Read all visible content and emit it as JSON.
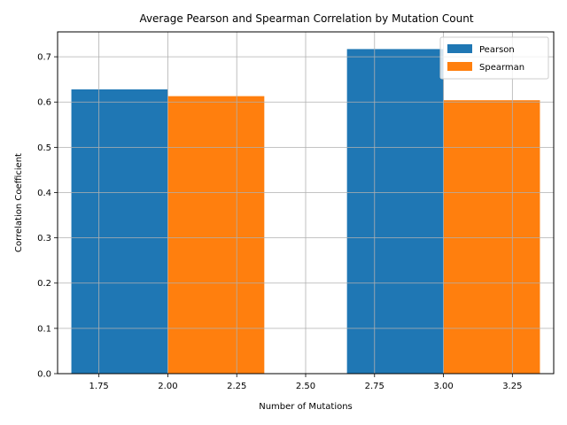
{
  "chart_data": {
    "type": "bar",
    "title": "Average Pearson and Spearman Correlation by Mutation Count",
    "xlabel": "Number of Mutations",
    "ylabel": "Correlation Coefficient",
    "xlim": [
      1.6,
      3.4
    ],
    "ylim": [
      0.0,
      0.755
    ],
    "xticks": [
      "1.75",
      "2.00",
      "2.25",
      "2.50",
      "2.75",
      "3.00",
      "3.25"
    ],
    "xtick_values": [
      1.75,
      2.0,
      2.25,
      2.5,
      2.75,
      3.0,
      3.25
    ],
    "yticks": [
      "0.0",
      "0.1",
      "0.2",
      "0.3",
      "0.4",
      "0.5",
      "0.6",
      "0.7"
    ],
    "ytick_values": [
      0.0,
      0.1,
      0.2,
      0.3,
      0.4,
      0.5,
      0.6,
      0.7
    ],
    "grid": true,
    "legend_position": "top-right",
    "bar_width": 0.35,
    "x": [
      2,
      3
    ],
    "series": [
      {
        "name": "Pearson",
        "color": "#1f77b4",
        "values": [
          0.628,
          0.717
        ],
        "bar_offset": -0.175
      },
      {
        "name": "Spearman",
        "color": "#ff7f0e",
        "values": [
          0.613,
          0.604
        ],
        "bar_offset": 0.175
      }
    ]
  }
}
